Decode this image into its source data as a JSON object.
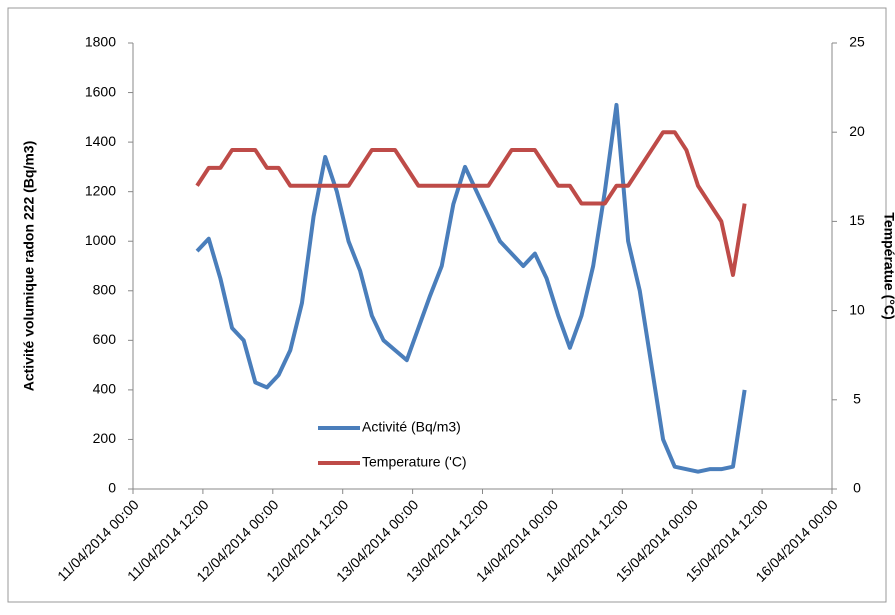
{
  "chart_data": {
    "type": "line",
    "x": [
      "2014-04-11T11:00",
      "2014-04-11T13:00",
      "2014-04-11T15:00",
      "2014-04-11T17:00",
      "2014-04-11T19:00",
      "2014-04-11T21:00",
      "2014-04-11T23:00",
      "2014-04-12T01:00",
      "2014-04-12T03:00",
      "2014-04-12T05:00",
      "2014-04-12T07:00",
      "2014-04-12T09:00",
      "2014-04-12T11:00",
      "2014-04-12T13:00",
      "2014-04-12T15:00",
      "2014-04-12T17:00",
      "2014-04-12T19:00",
      "2014-04-12T21:00",
      "2014-04-12T23:00",
      "2014-04-13T01:00",
      "2014-04-13T03:00",
      "2014-04-13T05:00",
      "2014-04-13T07:00",
      "2014-04-13T09:00",
      "2014-04-13T11:00",
      "2014-04-13T13:00",
      "2014-04-13T15:00",
      "2014-04-13T17:00",
      "2014-04-13T19:00",
      "2014-04-13T21:00",
      "2014-04-13T23:00",
      "2014-04-14T01:00",
      "2014-04-14T03:00",
      "2014-04-14T05:00",
      "2014-04-14T07:00",
      "2014-04-14T09:00",
      "2014-04-14T11:00",
      "2014-04-14T13:00",
      "2014-04-14T15:00",
      "2014-04-14T17:00",
      "2014-04-14T19:00",
      "2014-04-14T21:00",
      "2014-04-14T23:00",
      "2014-04-15T01:00",
      "2014-04-15T03:00",
      "2014-04-15T05:00",
      "2014-04-15T07:00",
      "2014-04-15T09:00"
    ],
    "series": [
      {
        "name": "Activité (Bq/m3)",
        "color": "#4a7ebb",
        "values": [
          960,
          1010,
          850,
          650,
          600,
          430,
          410,
          460,
          560,
          750,
          1100,
          1340,
          1200,
          1000,
          880,
          700,
          600,
          560,
          520,
          650,
          780,
          900,
          1150,
          1300,
          1200,
          1100,
          1000,
          950,
          900,
          950,
          850,
          700,
          570,
          700,
          900,
          1200,
          1550,
          1000,
          800,
          500,
          200,
          90,
          80,
          70,
          80,
          80,
          90,
          400
        ]
      },
      {
        "name": "Temperature ('C)",
        "color": "#be4b48",
        "axis": "y2",
        "values": [
          17,
          18,
          18,
          19,
          19,
          19,
          18,
          18,
          17,
          17,
          17,
          17,
          17,
          17,
          18,
          19,
          19,
          19,
          18,
          17,
          17,
          17,
          17,
          17,
          17,
          17,
          18,
          19,
          19,
          19,
          18,
          17,
          17,
          16,
          16,
          16,
          17,
          17,
          18,
          19,
          20,
          20,
          19,
          17,
          16,
          15,
          12,
          16
        ]
      }
    ],
    "ylabel": "Activité volumique radon 222 (Bq/m3)",
    "y2label": "Températue (°C)",
    "ylim": [
      0,
      1800
    ],
    "yticks": [
      0,
      200,
      400,
      600,
      800,
      1000,
      1200,
      1400,
      1600,
      1800
    ],
    "y2lim": [
      0,
      25
    ],
    "y2ticks": [
      0,
      5,
      10,
      15,
      20,
      25
    ],
    "xlim": [
      "2014-04-11T00:00",
      "2014-04-16T00:00"
    ],
    "xticks": [
      {
        "value": "2014-04-11T00:00",
        "label": "11/04/2014 00:00"
      },
      {
        "value": "2014-04-11T12:00",
        "label": "11/04/2014 12:00"
      },
      {
        "value": "2014-04-12T00:00",
        "label": "12/04/2014 00:00"
      },
      {
        "value": "2014-04-12T12:00",
        "label": "12/04/2014 12:00"
      },
      {
        "value": "2014-04-13T00:00",
        "label": "13/04/2014 00:00"
      },
      {
        "value": "2014-04-13T12:00",
        "label": "13/04/2014 12:00"
      },
      {
        "value": "2014-04-14T00:00",
        "label": "14/04/2014 00:00"
      },
      {
        "value": "2014-04-14T12:00",
        "label": "14/04/2014 12:00"
      },
      {
        "value": "2014-04-15T00:00",
        "label": "15/04/2014 00:00"
      },
      {
        "value": "2014-04-15T12:00",
        "label": "15/04/2014 12:00"
      },
      {
        "value": "2014-04-16T00:00",
        "label": "16/04/2014 00:00"
      }
    ],
    "grid": false
  }
}
